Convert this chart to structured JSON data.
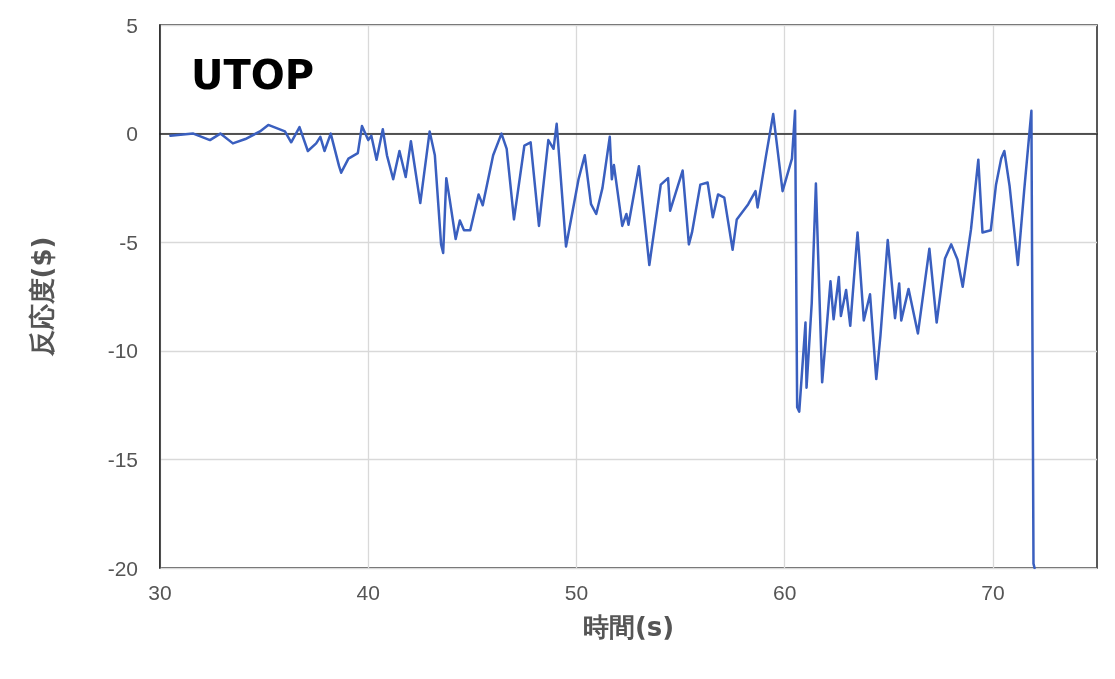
{
  "chart_data": {
    "type": "line",
    "title": "UTOP",
    "xlabel": "時間(s)",
    "ylabel": "反応度($)",
    "xlim": [
      30,
      75
    ],
    "xticks": [
      30,
      40,
      50,
      60,
      70
    ],
    "ylim": [
      -20,
      5
    ],
    "yticks": [
      -20,
      -15,
      -10,
      -5,
      0,
      5
    ],
    "grid": true,
    "marker": "none",
    "line_style": "solid",
    "series": [
      {
        "color": "#3a5fbf",
        "x": [
          30.5,
          31.6,
          32.4,
          32.9,
          33.5,
          34.1,
          34.8,
          35.2,
          36.0,
          36.3,
          36.7,
          37.1,
          37.5,
          37.7,
          37.9,
          38.2,
          38.6,
          38.7,
          39.05,
          39.5,
          39.7,
          40.0,
          40.15,
          40.4,
          40.7,
          40.9,
          41.2,
          41.5,
          41.8,
          42.05,
          42.5,
          42.95,
          43.2,
          43.5,
          43.6,
          43.75,
          43.9,
          44.2,
          44.4,
          44.6,
          44.9,
          45.3,
          45.5,
          46.0,
          46.4,
          46.65,
          47.0,
          47.5,
          47.8,
          48.2,
          48.65,
          48.9,
          49.05,
          49.5,
          50.1,
          50.4,
          50.7,
          50.95,
          51.25,
          51.6,
          51.7,
          51.8,
          52.2,
          52.4,
          52.5,
          53.0,
          53.5,
          54.05,
          54.4,
          54.5,
          55.1,
          55.4,
          55.55,
          55.95,
          56.3,
          56.55,
          56.8,
          57.1,
          57.5,
          57.7,
          58.25,
          58.6,
          58.7,
          59.1,
          59.45,
          59.9,
          60.35,
          60.5,
          60.6,
          60.7,
          61.0,
          61.05,
          61.3,
          61.5,
          61.8,
          62.2,
          62.35,
          62.6,
          62.7,
          62.95,
          63.15,
          63.5,
          63.8,
          64.1,
          64.4,
          64.6,
          64.95,
          65.3,
          65.5,
          65.6,
          65.95,
          66.4,
          66.95,
          67.3,
          67.7,
          68.0,
          68.3,
          68.55,
          68.95,
          69.3,
          69.5,
          69.9,
          70.15,
          70.4,
          70.55,
          70.8,
          71.2,
          71.5,
          71.85,
          71.95,
          72.0
        ],
        "values": [
          -0.1,
          0.0,
          -0.3,
          0.0,
          -0.45,
          -0.25,
          0.1,
          0.4,
          0.1,
          -0.4,
          0.3,
          -0.8,
          -0.45,
          -0.15,
          -0.8,
          0.0,
          -1.5,
          -1.8,
          -1.15,
          -0.9,
          0.35,
          -0.3,
          -0.1,
          -1.2,
          0.2,
          -1.0,
          -2.1,
          -0.8,
          -2.0,
          -0.35,
          -3.2,
          0.1,
          -1.0,
          -5.1,
          -5.5,
          -2.05,
          -2.95,
          -4.85,
          -4.0,
          -4.45,
          -4.45,
          -2.8,
          -3.3,
          -1.0,
          0.0,
          -0.7,
          -3.95,
          -0.55,
          -0.4,
          -4.25,
          -0.3,
          -0.7,
          0.45,
          -5.2,
          -2.1,
          -1.0,
          -3.25,
          -3.7,
          -2.5,
          -0.15,
          -2.1,
          -1.45,
          -4.25,
          -3.7,
          -4.2,
          -1.5,
          -6.05,
          -2.35,
          -2.05,
          -3.55,
          -1.7,
          -5.1,
          -4.55,
          -2.35,
          -2.25,
          -3.85,
          -2.8,
          -2.95,
          -5.35,
          -3.95,
          -3.25,
          -2.65,
          -3.4,
          -1.05,
          0.9,
          -2.65,
          -1.15,
          1.05,
          -12.6,
          -12.8,
          -8.7,
          -11.7,
          -7.8,
          -2.3,
          -11.45,
          -6.8,
          -8.55,
          -6.6,
          -8.4,
          -7.2,
          -8.85,
          -4.55,
          -8.6,
          -7.4,
          -11.3,
          -9.3,
          -4.9,
          -8.5,
          -6.9,
          -8.6,
          -7.15,
          -9.2,
          -5.3,
          -8.7,
          -5.75,
          -5.1,
          -5.8,
          -7.05,
          -4.4,
          -1.2,
          -4.55,
          -4.45,
          -2.35,
          -1.15,
          -0.8,
          -2.4,
          -6.05,
          -2.65,
          1.05,
          -19.8,
          -20
        ]
      }
    ]
  }
}
